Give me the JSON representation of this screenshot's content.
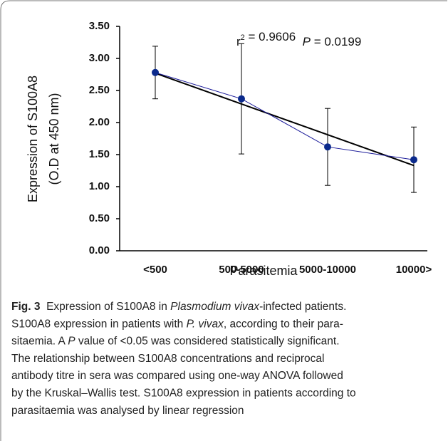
{
  "chart_data": {
    "type": "line",
    "categories": [
      "<500",
      "500-5000",
      "5000-10000",
      "10000>"
    ],
    "series": [
      {
        "color": "#1a1a99",
        "values": [
          2.78,
          2.37,
          1.62,
          1.42
        ],
        "errors": [
          0.41,
          0.86,
          0.6,
          0.51
        ]
      }
    ],
    "trendline": {
      "color": "#000000",
      "values": [
        2.77,
        1.33
      ]
    },
    "ylim": [
      0,
      3.5
    ],
    "yticks": [
      {
        "value": 0,
        "label": "0.00"
      },
      {
        "value": 0.5,
        "label": "0.50"
      },
      {
        "value": 1,
        "label": "1.00"
      },
      {
        "value": 1.5,
        "label": "1.50"
      },
      {
        "value": 2,
        "label": "2.00"
      },
      {
        "value": 2.5,
        "label": "2.50"
      },
      {
        "value": 3,
        "label": "3.00"
      },
      {
        "value": 3.5,
        "label": "3.50"
      }
    ],
    "ylabel": [
      "Expression of S100A8",
      "(O.D at 450 nm)"
    ],
    "xlabel": "Parasitemia",
    "annotation": [
      "r",
      {
        "sup": "2"
      },
      " = 0.9606  ",
      {
        "italic": "P"
      },
      " = 0.0199"
    ]
  },
  "caption": {
    "label": "Fig. 3",
    "lines": [
      [
        "  Expression of S100A8 in ",
        {
          "italic": "Plasmodium vivax"
        },
        "-infected patients."
      ],
      [
        "S100A8 expression in patients with ",
        {
          "italic": "P. vivax"
        },
        ", according to their para-"
      ],
      [
        "sitaemia. A ",
        {
          "italic": "P"
        },
        " value of <0.05 was considered statistically significant."
      ],
      [
        "The relationship between S100A8 concentrations and reciprocal"
      ],
      [
        "antibody titre in sera was compared using one-way ANOVA followed"
      ],
      [
        "by the Kruskal–Wallis test. S100A8 expression in patients according to"
      ],
      [
        "parasitaemia was analysed by linear regression"
      ]
    ]
  }
}
